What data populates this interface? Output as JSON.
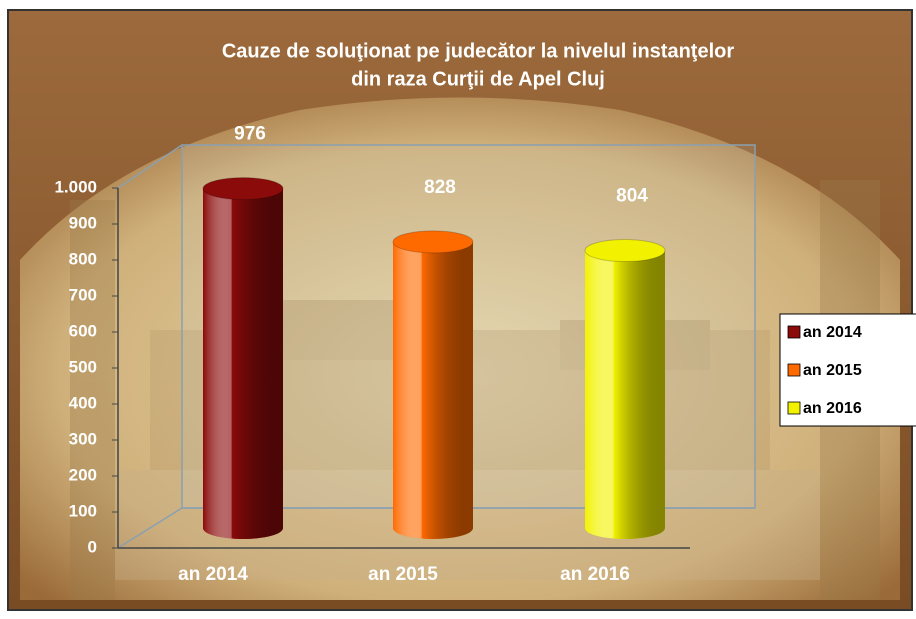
{
  "chart_data": {
    "type": "bar3d",
    "title": [
      "Cauze de soluţionat pe judecător la nivelul instanţelor",
      "din raza Curţii de Apel Cluj"
    ],
    "categories": [
      "an 2014",
      "an 2015",
      "an 2016"
    ],
    "values": [
      976,
      828,
      804
    ],
    "colors": [
      "#8b0a0a",
      "#ff6a00",
      "#f2f200"
    ],
    "ylim": [
      0,
      1000
    ],
    "yticks": [
      0,
      100,
      200,
      300,
      400,
      500,
      600,
      700,
      800,
      900,
      {
        "value": 1000,
        "label": "1.000"
      }
    ],
    "legend": "right"
  }
}
